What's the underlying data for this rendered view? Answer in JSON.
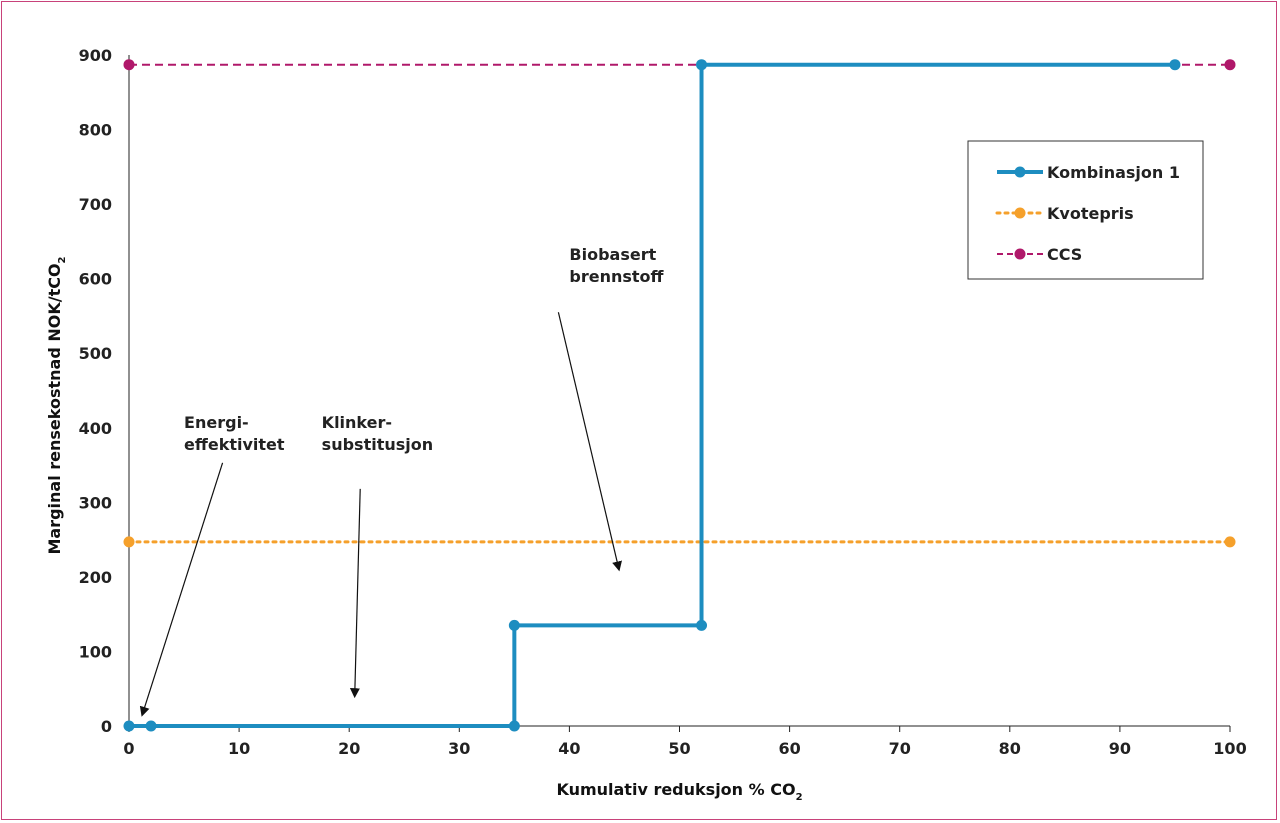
{
  "chart_data": {
    "type": "line",
    "xlabel": "Kumulativ reduksjon % CO",
    "xlabel_sub": "2",
    "ylabel": "Marginal rensekostnad NOK/tCO",
    "ylabel_sub": "2",
    "xlim": [
      0,
      100
    ],
    "ylim": [
      0,
      900
    ],
    "x_ticks": [
      0,
      10,
      20,
      30,
      40,
      50,
      60,
      70,
      80,
      90,
      100
    ],
    "y_ticks": [
      0,
      100,
      200,
      300,
      400,
      500,
      600,
      700,
      800,
      900
    ],
    "grid": false,
    "legend_position": "top-right",
    "series": [
      {
        "name": "Kombinasjon 1",
        "color": "#1d8dc0",
        "style": "step-solid",
        "points": [
          [
            0,
            0
          ],
          [
            2,
            0
          ],
          [
            35,
            0
          ],
          [
            35,
            135
          ],
          [
            52,
            135
          ],
          [
            52,
            887
          ],
          [
            95,
            887
          ]
        ],
        "markers": [
          [
            0,
            0
          ],
          [
            2,
            0
          ],
          [
            35,
            0
          ],
          [
            35,
            135
          ],
          [
            52,
            135
          ],
          [
            52,
            887
          ],
          [
            95,
            887
          ]
        ]
      },
      {
        "name": "Kvotepris",
        "color": "#f5a02b",
        "style": "dotted",
        "points": [
          [
            0,
            247
          ],
          [
            100,
            247
          ]
        ],
        "markers": [
          [
            0,
            247
          ],
          [
            100,
            247
          ]
        ]
      },
      {
        "name": "CCS",
        "color": "#b0186a",
        "style": "dashed",
        "points": [
          [
            0,
            887
          ],
          [
            100,
            887
          ]
        ],
        "markers": [
          [
            0,
            887
          ],
          [
            100,
            887
          ]
        ]
      }
    ],
    "annotations": [
      {
        "lines": [
          "Energi-",
          "effektivitet"
        ],
        "text_x": 5,
        "text_y": 400,
        "arrow_from": [
          8.5,
          353
        ],
        "arrow_to": [
          1.2,
          15
        ]
      },
      {
        "lines": [
          "Klinker-",
          "substitusjon"
        ],
        "text_x": 17.5,
        "text_y": 400,
        "arrow_from": [
          21,
          318
        ],
        "arrow_to": [
          20.5,
          40
        ]
      },
      {
        "lines": [
          "Biobasert",
          "brennstoff"
        ],
        "text_x": 40,
        "text_y": 625,
        "arrow_from": [
          39,
          555
        ],
        "arrow_to": [
          44.5,
          210
        ]
      }
    ]
  }
}
